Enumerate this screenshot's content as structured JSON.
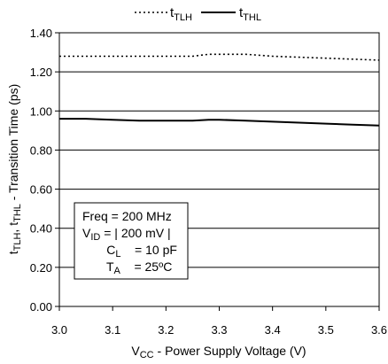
{
  "chart_data": {
    "type": "line",
    "xlabel": {
      "main": "V",
      "sub": "CC",
      "rest": " - Power Supply Voltage (V)"
    },
    "ylabel": {
      "p1": "t",
      "s1": "TLH",
      "p2": ", t",
      "s2": "THL",
      "rest": " - Transition Time (ps)"
    },
    "xlim": [
      3.0,
      3.6
    ],
    "ylim": [
      0.0,
      1.4
    ],
    "x_ticks": [
      "3.0",
      "3.1",
      "3.2",
      "3.3",
      "3.4",
      "3.5",
      "3.6"
    ],
    "y_ticks": [
      "0.00",
      "0.20",
      "0.40",
      "0.60",
      "0.80",
      "1.00",
      "1.20",
      "1.40"
    ],
    "grid": "horizontal",
    "legend_position": "top-center",
    "series": [
      {
        "name": {
          "main": "t",
          "sub": "TLH"
        },
        "style": "dotted",
        "color": "#000000",
        "x": [
          3.0,
          3.05,
          3.1,
          3.15,
          3.2,
          3.25,
          3.28,
          3.3,
          3.35,
          3.4,
          3.45,
          3.5,
          3.55,
          3.6
        ],
        "y": [
          1.28,
          1.28,
          1.28,
          1.28,
          1.28,
          1.28,
          1.29,
          1.29,
          1.29,
          1.28,
          1.275,
          1.27,
          1.265,
          1.26
        ]
      },
      {
        "name": {
          "main": "t",
          "sub": "THL"
        },
        "style": "solid",
        "color": "#000000",
        "x": [
          3.0,
          3.05,
          3.1,
          3.15,
          3.2,
          3.25,
          3.28,
          3.3,
          3.35,
          3.4,
          3.45,
          3.5,
          3.55,
          3.6
        ],
        "y": [
          0.96,
          0.96,
          0.955,
          0.95,
          0.95,
          0.95,
          0.955,
          0.955,
          0.95,
          0.945,
          0.94,
          0.935,
          0.93,
          0.925
        ]
      }
    ],
    "annotation": {
      "lines": [
        {
          "text": "Freq = 200 MHz"
        },
        {
          "main": "V",
          "sub": "ID",
          "rest": " = | 200 mV |"
        },
        {
          "main": "C",
          "sub": "L",
          "rest": "    = 10 pF"
        },
        {
          "main": "T",
          "sub": "A",
          "rest": "    = 25ºC"
        }
      ]
    }
  }
}
